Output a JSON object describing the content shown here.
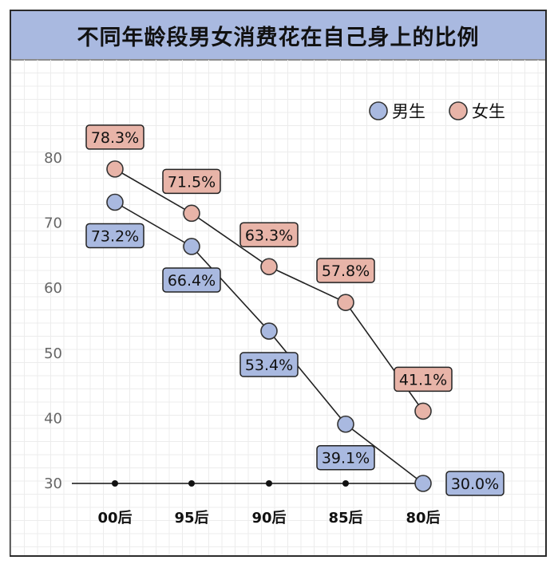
{
  "chart_data": {
    "type": "line",
    "title": "不同年龄段男女消费花在自己身上的比例",
    "categories": [
      "00后",
      "95后",
      "90后",
      "85后",
      "80后"
    ],
    "series": [
      {
        "name": "男生",
        "values": [
          73.2,
          66.4,
          53.4,
          39.1,
          30.0
        ],
        "labels": [
          "73.2%",
          "66.4%",
          "53.4%",
          "39.1%",
          "30.0%"
        ],
        "color": "#a9b9e0"
      },
      {
        "name": "女生",
        "values": [
          78.3,
          71.5,
          63.3,
          57.8,
          41.1
        ],
        "labels": [
          "78.3%",
          "71.5%",
          "63.3%",
          "57.8%",
          "41.1%"
        ],
        "color": "#e8b4a8"
      }
    ],
    "yticks": [
      30,
      40,
      50,
      60,
      70,
      80
    ],
    "ylim": [
      30,
      80
    ],
    "grid": true,
    "legend_position": "top-right"
  }
}
